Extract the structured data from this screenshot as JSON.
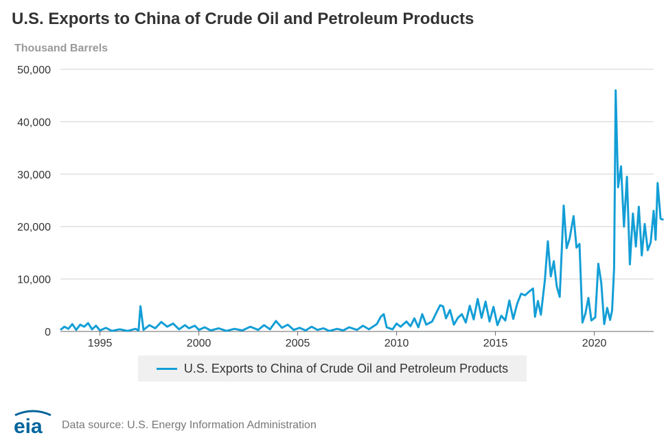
{
  "colors": {
    "series": "#139ed6",
    "grid": "#d0d0d0",
    "axis": "#666666",
    "logo": "#00649c"
  },
  "header": {
    "title": "U.S. Exports to China of Crude Oil and Petroleum Products",
    "units": "Thousand Barrels"
  },
  "footer": {
    "logo_text": "eia",
    "source": "Data source: U.S. Energy Information Administration"
  },
  "chart_data": {
    "type": "line",
    "title": "U.S. Exports to China of Crude Oil and Petroleum Products",
    "ylabel": "Thousand Barrels",
    "xlabel": "",
    "xlim": [
      1993.0,
      2023.0
    ],
    "ylim": [
      0,
      50000
    ],
    "yticks": [
      0,
      10000,
      20000,
      30000,
      40000,
      50000
    ],
    "ytick_labels": [
      "0",
      "10,000",
      "20,000",
      "30,000",
      "40,000",
      "50,000"
    ],
    "xticks": [
      1995,
      2000,
      2005,
      2010,
      2015,
      2020
    ],
    "xtick_labels": [
      "1995",
      "2000",
      "2005",
      "2010",
      "2015",
      "2020"
    ],
    "grid": "horizontal",
    "legend_position": "bottom-center",
    "series": [
      {
        "name": "U.S. Exports to China of Crude Oil and Petroleum Products",
        "points": [
          [
            1993.0,
            300
          ],
          [
            1993.2,
            900
          ],
          [
            1993.4,
            500
          ],
          [
            1993.6,
            1400
          ],
          [
            1993.8,
            300
          ],
          [
            1994.0,
            1300
          ],
          [
            1994.2,
            900
          ],
          [
            1994.4,
            1600
          ],
          [
            1994.6,
            400
          ],
          [
            1994.8,
            1100
          ],
          [
            1995.0,
            200
          ],
          [
            1995.3,
            700
          ],
          [
            1995.6,
            100
          ],
          [
            1996.0,
            400
          ],
          [
            1996.4,
            100
          ],
          [
            1996.8,
            500
          ],
          [
            1996.95,
            200
          ],
          [
            1997.05,
            4800
          ],
          [
            1997.2,
            300
          ],
          [
            1997.5,
            1200
          ],
          [
            1997.8,
            600
          ],
          [
            1998.1,
            1800
          ],
          [
            1998.4,
            900
          ],
          [
            1998.7,
            1500
          ],
          [
            1999.0,
            400
          ],
          [
            1999.3,
            1200
          ],
          [
            1999.5,
            600
          ],
          [
            1999.8,
            1100
          ],
          [
            2000.0,
            300
          ],
          [
            2000.3,
            800
          ],
          [
            2000.6,
            200
          ],
          [
            2001.0,
            600
          ],
          [
            2001.4,
            100
          ],
          [
            2001.8,
            500
          ],
          [
            2002.2,
            200
          ],
          [
            2002.6,
            900
          ],
          [
            2003.0,
            300
          ],
          [
            2003.3,
            1200
          ],
          [
            2003.6,
            400
          ],
          [
            2003.9,
            2000
          ],
          [
            2004.2,
            700
          ],
          [
            2004.5,
            1300
          ],
          [
            2004.8,
            300
          ],
          [
            2005.1,
            700
          ],
          [
            2005.4,
            200
          ],
          [
            2005.7,
            900
          ],
          [
            2006.0,
            300
          ],
          [
            2006.3,
            600
          ],
          [
            2006.6,
            100
          ],
          [
            2007.0,
            500
          ],
          [
            2007.3,
            200
          ],
          [
            2007.6,
            800
          ],
          [
            2008.0,
            300
          ],
          [
            2008.3,
            1100
          ],
          [
            2008.6,
            400
          ],
          [
            2009.0,
            1400
          ],
          [
            2009.2,
            2800
          ],
          [
            2009.35,
            3300
          ],
          [
            2009.5,
            800
          ],
          [
            2009.8,
            400
          ],
          [
            2010.0,
            1500
          ],
          [
            2010.2,
            900
          ],
          [
            2010.5,
            1900
          ],
          [
            2010.7,
            1000
          ],
          [
            2010.9,
            2500
          ],
          [
            2011.1,
            800
          ],
          [
            2011.3,
            3300
          ],
          [
            2011.5,
            1300
          ],
          [
            2011.8,
            1900
          ],
          [
            2012.0,
            3500
          ],
          [
            2012.2,
            5000
          ],
          [
            2012.35,
            4800
          ],
          [
            2012.5,
            2500
          ],
          [
            2012.7,
            4100
          ],
          [
            2012.9,
            1300
          ],
          [
            2013.1,
            2600
          ],
          [
            2013.3,
            3300
          ],
          [
            2013.5,
            1700
          ],
          [
            2013.7,
            4900
          ],
          [
            2013.9,
            2300
          ],
          [
            2014.1,
            6200
          ],
          [
            2014.3,
            2600
          ],
          [
            2014.5,
            5700
          ],
          [
            2014.7,
            1900
          ],
          [
            2014.9,
            4700
          ],
          [
            2015.1,
            1200
          ],
          [
            2015.3,
            3000
          ],
          [
            2015.5,
            2100
          ],
          [
            2015.7,
            5900
          ],
          [
            2015.9,
            2400
          ],
          [
            2016.1,
            5300
          ],
          [
            2016.3,
            7200
          ],
          [
            2016.5,
            6900
          ],
          [
            2016.7,
            7600
          ],
          [
            2016.9,
            8200
          ],
          [
            2017.0,
            2800
          ],
          [
            2017.15,
            5800
          ],
          [
            2017.3,
            3200
          ],
          [
            2017.5,
            9800
          ],
          [
            2017.65,
            17200
          ],
          [
            2017.8,
            10500
          ],
          [
            2017.95,
            13400
          ],
          [
            2018.1,
            8600
          ],
          [
            2018.25,
            6600
          ],
          [
            2018.45,
            24000
          ],
          [
            2018.6,
            15900
          ],
          [
            2018.75,
            17700
          ],
          [
            2018.95,
            22000
          ],
          [
            2019.1,
            16000
          ],
          [
            2019.25,
            16700
          ],
          [
            2019.4,
            1700
          ],
          [
            2019.55,
            3400
          ],
          [
            2019.7,
            6400
          ],
          [
            2019.85,
            2100
          ],
          [
            2020.05,
            2700
          ],
          [
            2020.2,
            12900
          ],
          [
            2020.35,
            9300
          ],
          [
            2020.5,
            1400
          ],
          [
            2020.65,
            4500
          ],
          [
            2020.8,
            2200
          ],
          [
            2020.9,
            4000
          ],
          [
            2021.0,
            12000
          ],
          [
            2021.08,
            46000
          ],
          [
            2021.2,
            27500
          ],
          [
            2021.35,
            31500
          ],
          [
            2021.5,
            20000
          ],
          [
            2021.65,
            29500
          ],
          [
            2021.8,
            12800
          ],
          [
            2021.95,
            22500
          ],
          [
            2022.1,
            16200
          ],
          [
            2022.25,
            23800
          ],
          [
            2022.4,
            14500
          ],
          [
            2022.55,
            20500
          ],
          [
            2022.7,
            15500
          ],
          [
            2022.85,
            17000
          ],
          [
            2023.0,
            23000
          ],
          [
            2023.1,
            17500
          ],
          [
            2023.2,
            28300
          ],
          [
            2023.35,
            21500
          ],
          [
            2023.5,
            21300
          ]
        ]
      }
    ]
  }
}
